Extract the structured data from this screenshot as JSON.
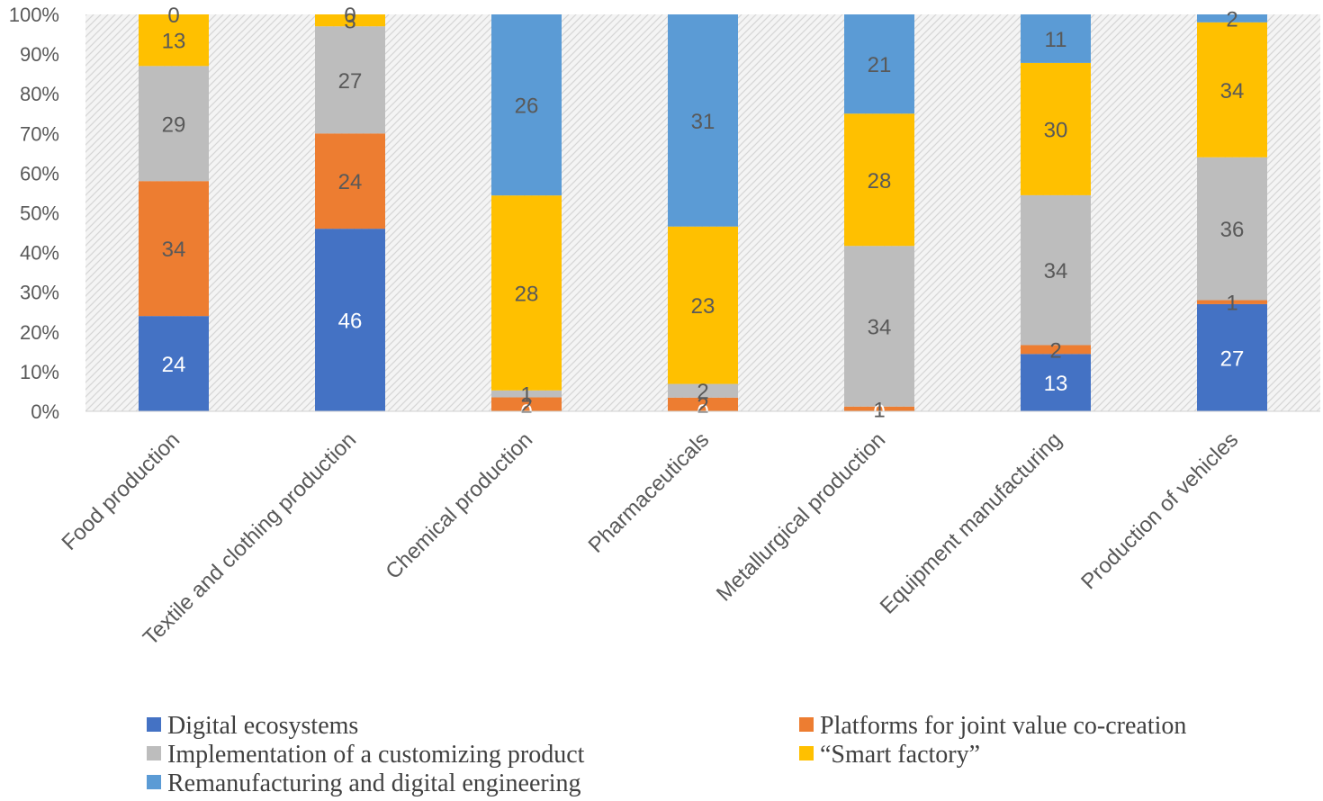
{
  "chart_data": {
    "type": "bar",
    "stacked": true,
    "percent_stacked": true,
    "categories": [
      "Food production",
      "Textile and clothing production",
      "Chemical production",
      "Pharmaceuticals",
      "Metallurgical production",
      "Equipment manufacturing",
      "Production of vehicles"
    ],
    "series": [
      {
        "name": "Digital ecosystems",
        "color": "#4472C4",
        "label_color": "#ffffff",
        "values": [
          24,
          46,
          0,
          0,
          0,
          13,
          27
        ]
      },
      {
        "name": "Platforms for joint value co-creation",
        "color": "#ED7D31",
        "label_color": "#595959",
        "values": [
          34,
          24,
          2,
          2,
          1,
          2,
          1
        ]
      },
      {
        "name": "Implementation of a customizing product",
        "color": "#BDBDBD",
        "label_color": "#595959",
        "values": [
          29,
          27,
          1,
          2,
          34,
          34,
          36
        ]
      },
      {
        "name": "“Smart factory”",
        "color": "#FFC000",
        "label_color": "#595959",
        "values": [
          13,
          3,
          28,
          23,
          28,
          30,
          34
        ]
      },
      {
        "name": "Remanufacturing and digital engineering",
        "color": "#5B9BD5",
        "label_color": "#595959",
        "values": [
          0,
          0,
          26,
          31,
          21,
          11,
          2
        ]
      }
    ],
    "yticks": [
      "0%",
      "10%",
      "20%",
      "30%",
      "40%",
      "50%",
      "60%",
      "70%",
      "80%",
      "90%",
      "100%"
    ],
    "ylim": [
      0,
      100
    ],
    "grid": false,
    "plot_background": "hatched light gray",
    "legend_position": "bottom"
  }
}
